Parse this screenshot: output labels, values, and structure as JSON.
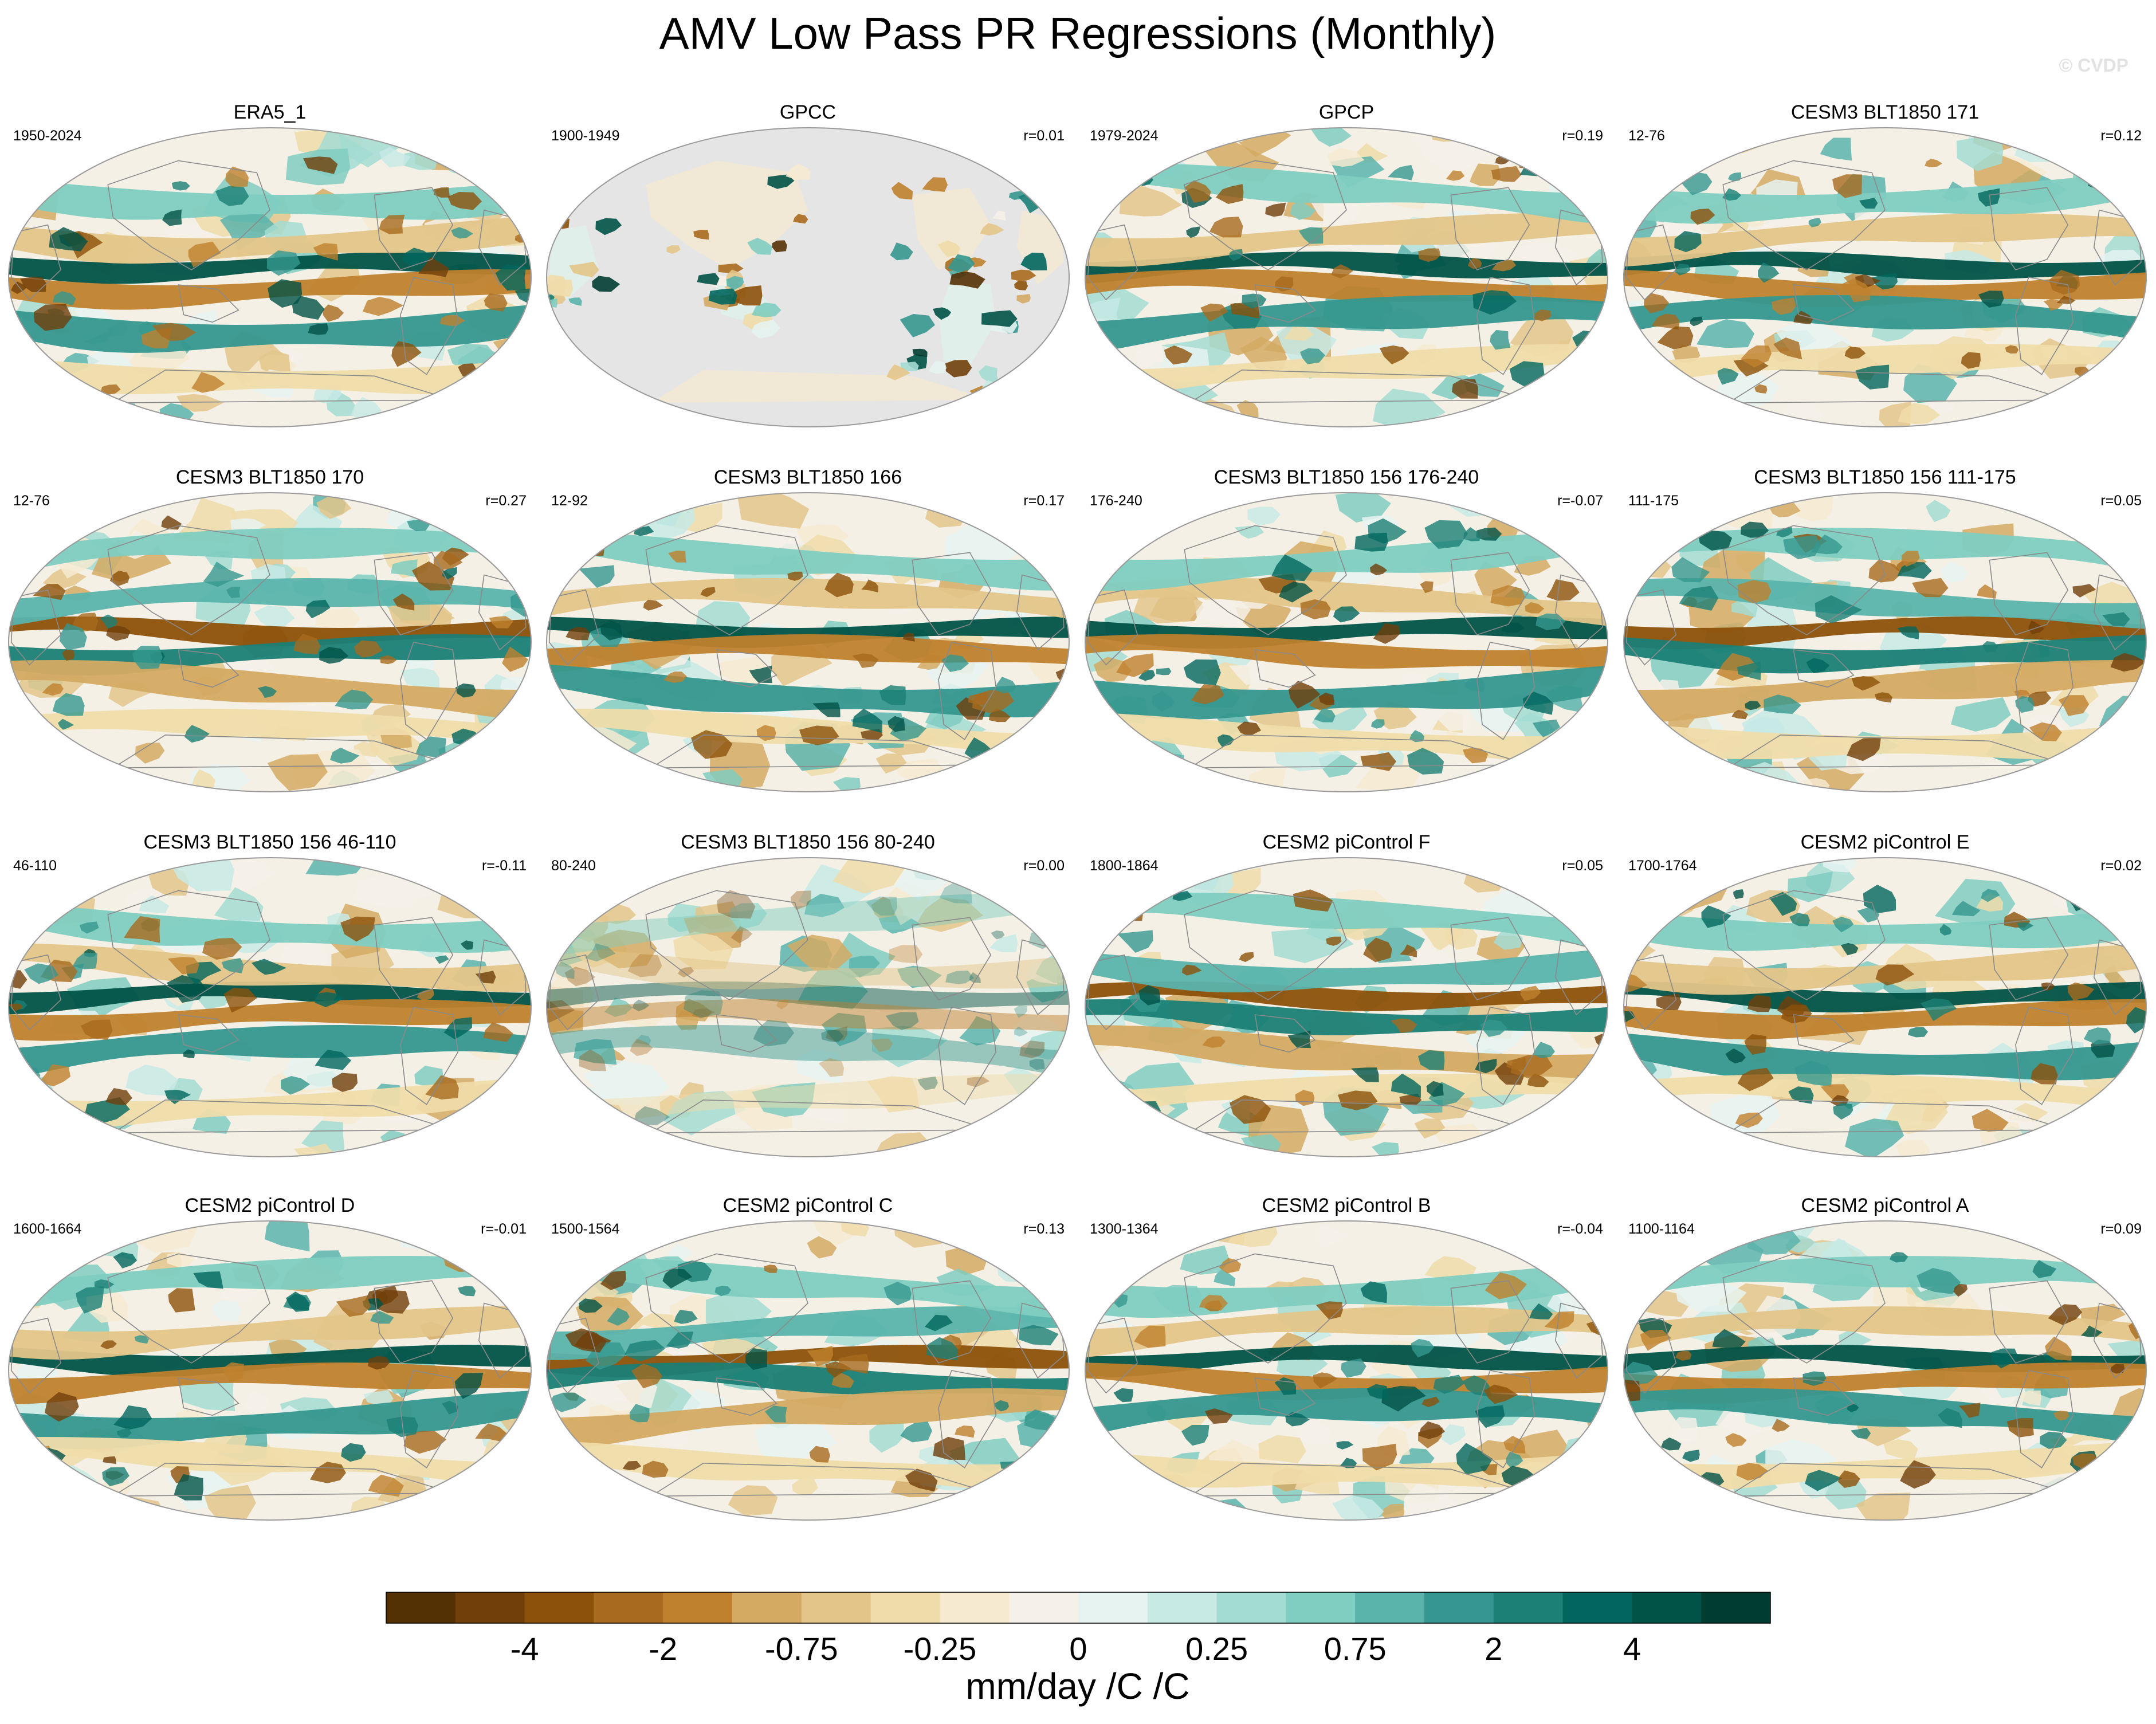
{
  "figure": {
    "title": "AMV Low Pass PR Regressions (Monthly)",
    "watermark": "© CVDP"
  },
  "chart_data": {
    "type": "heatmap",
    "title": "AMV Low Pass PR Regressions (Monthly)",
    "variable": "PR",
    "units": "mm/day /C /C",
    "colorbar": {
      "label": "mm/day /C /C",
      "ticks": [
        "-4",
        "-2",
        "-0.75",
        "-0.25",
        "0",
        "0.25",
        "0.75",
        "2",
        "4"
      ],
      "colors": [
        "#543005",
        "#703f0a",
        "#8c510a",
        "#a86a1e",
        "#bf812d",
        "#d4aa63",
        "#e3c589",
        "#f0dcaa",
        "#f6ead0",
        "#f5f1e8",
        "#e6f3f1",
        "#c7eae5",
        "#a3dcd2",
        "#80cdc1",
        "#5ab4ac",
        "#35978f",
        "#1b8076",
        "#01665e",
        "#015247",
        "#003c30"
      ]
    },
    "panels": [
      {
        "name": "ERA5_1",
        "years": "1950-2024",
        "r": "",
        "coverage": "global",
        "style": 0
      },
      {
        "name": "GPCC",
        "years": "1900-1949",
        "r": "r=0.01",
        "coverage": "land",
        "style": 1
      },
      {
        "name": "GPCP",
        "years": "1979-2024",
        "r": "r=0.19",
        "coverage": "global",
        "style": 2
      },
      {
        "name": "CESM3 BLT1850 171",
        "years": "12-76",
        "r": "r=0.12",
        "coverage": "global",
        "style": 3
      },
      {
        "name": "CESM3 BLT1850 170",
        "years": "12-76",
        "r": "r=0.27",
        "coverage": "global",
        "style": 4
      },
      {
        "name": "CESM3 BLT1850 166",
        "years": "12-92",
        "r": "r=0.17",
        "coverage": "global",
        "style": 5
      },
      {
        "name": "CESM3 BLT1850 156 176-240",
        "years": "176-240",
        "r": "r=-0.07",
        "coverage": "global",
        "style": 6
      },
      {
        "name": "CESM3 BLT1850 156 111-175",
        "years": "111-175",
        "r": "r=0.05",
        "coverage": "global",
        "style": 7
      },
      {
        "name": "CESM3 BLT1850 156 46-110",
        "years": "46-110",
        "r": "r=-0.11",
        "coverage": "global",
        "style": 8
      },
      {
        "name": "CESM3 BLT1850 156 80-240",
        "years": "80-240",
        "r": "r=0.00",
        "coverage": "global",
        "style": 9
      },
      {
        "name": "CESM2 piControl F",
        "years": "1800-1864",
        "r": "r=0.05",
        "coverage": "global",
        "style": 10
      },
      {
        "name": "CESM2 piControl E",
        "years": "1700-1764",
        "r": "r=0.02",
        "coverage": "global",
        "style": 11
      },
      {
        "name": "CESM2 piControl D",
        "years": "1600-1664",
        "r": "r=-0.01",
        "coverage": "global",
        "style": 12
      },
      {
        "name": "CESM2 piControl C",
        "years": "1500-1564",
        "r": "r=0.13",
        "coverage": "global",
        "style": 13
      },
      {
        "name": "CESM2 piControl B",
        "years": "1300-1364",
        "r": "r=-0.04",
        "coverage": "global",
        "style": 14
      },
      {
        "name": "CESM2 piControl A",
        "years": "1100-1164",
        "r": "r=0.09",
        "coverage": "global",
        "style": 15
      }
    ]
  }
}
